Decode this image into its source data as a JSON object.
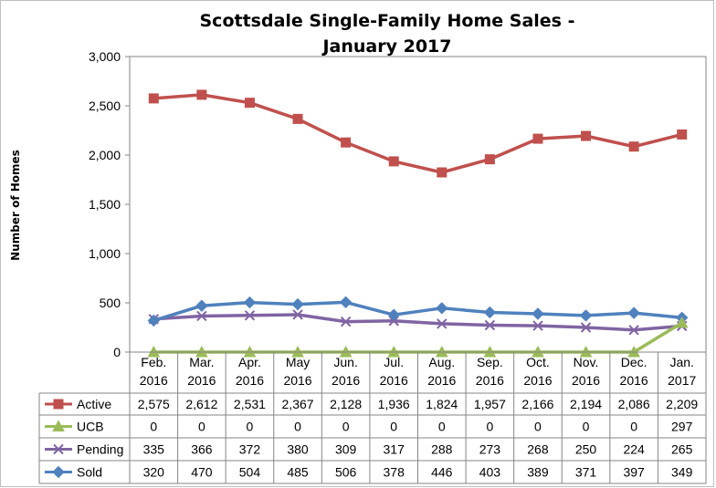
{
  "chart_data": {
    "type": "line",
    "title": "Scottsdale Single-Family Home Sales - January 2017",
    "title_lines": [
      "Scottsdale Single-Family Home Sales -",
      "January 2017"
    ],
    "ylabel": "Number of Homes",
    "xlabel": "",
    "ylim": [
      0,
      3000
    ],
    "yticks": [
      0,
      500,
      1000,
      1500,
      2000,
      2500,
      3000
    ],
    "ytick_labels": [
      "0",
      "500",
      "1,000",
      "1,500",
      "2,000",
      "2,500",
      "3,000"
    ],
    "grid": false,
    "legend_placement": "data-table-left",
    "categories": [
      [
        "Feb.",
        "2016"
      ],
      [
        "Mar.",
        "2016"
      ],
      [
        "Apr.",
        "2016"
      ],
      [
        "May",
        "2016"
      ],
      [
        "Jun.",
        "2016"
      ],
      [
        "Jul.",
        "2016"
      ],
      [
        "Aug.",
        "2016"
      ],
      [
        "Sep.",
        "2016"
      ],
      [
        "Oct.",
        "2016"
      ],
      [
        "Nov.",
        "2016"
      ],
      [
        "Dec.",
        "2016"
      ],
      [
        "Jan.",
        "2017"
      ]
    ],
    "series": [
      {
        "name": "Active",
        "color": "#C0504D",
        "marker": "square",
        "values": [
          2575,
          2612,
          2531,
          2367,
          2128,
          1936,
          1824,
          1957,
          2166,
          2194,
          2086,
          2209
        ],
        "labels": [
          "2,575",
          "2,612",
          "2,531",
          "2,367",
          "2,128",
          "1,936",
          "1,824",
          "1,957",
          "2,166",
          "2,194",
          "2,086",
          "2,209"
        ]
      },
      {
        "name": "UCB",
        "color": "#9BBB59",
        "marker": "triangle",
        "values": [
          0,
          0,
          0,
          0,
          0,
          0,
          0,
          0,
          0,
          0,
          0,
          297
        ],
        "labels": [
          "0",
          "0",
          "0",
          "0",
          "0",
          "0",
          "0",
          "0",
          "0",
          "0",
          "0",
          "297"
        ]
      },
      {
        "name": "Pending",
        "color": "#8064A2",
        "marker": "x",
        "values": [
          335,
          366,
          372,
          380,
          309,
          317,
          288,
          273,
          268,
          250,
          224,
          265
        ],
        "labels": [
          "335",
          "366",
          "372",
          "380",
          "309",
          "317",
          "288",
          "273",
          "268",
          "250",
          "224",
          "265"
        ]
      },
      {
        "name": "Sold",
        "color": "#4F81BD",
        "marker": "diamond",
        "values": [
          320,
          470,
          504,
          485,
          506,
          378,
          446,
          403,
          389,
          371,
          397,
          349
        ],
        "labels": [
          "320",
          "470",
          "504",
          "485",
          "506",
          "378",
          "446",
          "403",
          "389",
          "371",
          "397",
          "349"
        ]
      }
    ]
  }
}
